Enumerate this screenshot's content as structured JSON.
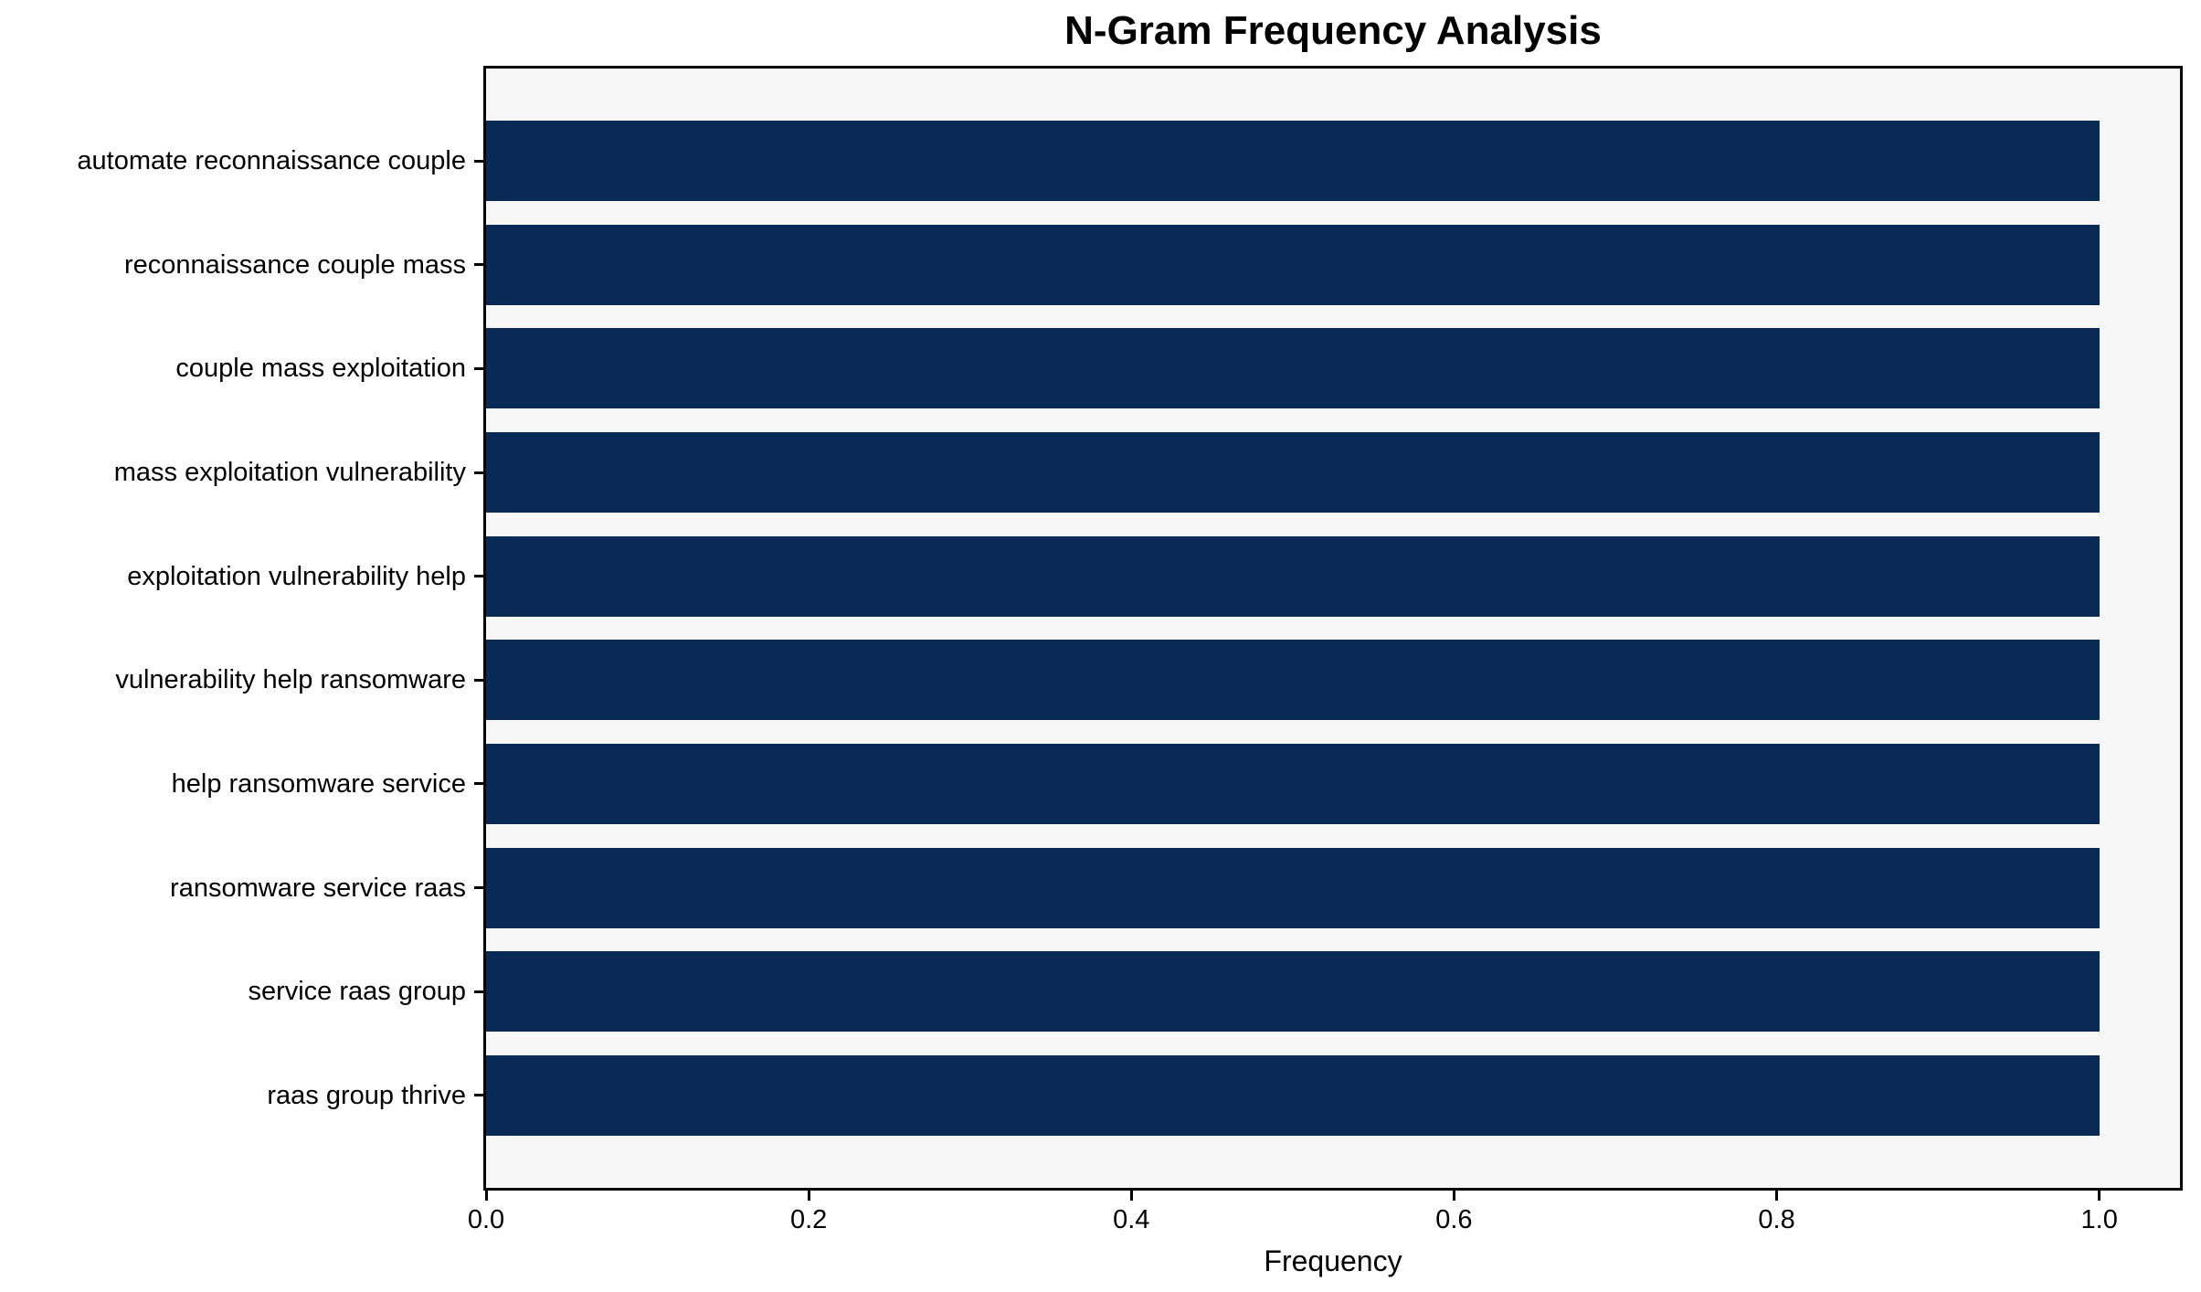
{
  "chart_data": {
    "type": "bar",
    "orientation": "horizontal",
    "title": "N-Gram Frequency Analysis",
    "xlabel": "Frequency",
    "ylabel": "",
    "categories": [
      "automate reconnaissance couple",
      "reconnaissance couple mass",
      "couple mass exploitation",
      "mass exploitation vulnerability",
      "exploitation vulnerability help",
      "vulnerability help ransomware",
      "help ransomware service",
      "ransomware service raas",
      "service raas group",
      "raas group thrive"
    ],
    "values": [
      1.0,
      1.0,
      1.0,
      1.0,
      1.0,
      1.0,
      1.0,
      1.0,
      1.0,
      1.0
    ],
    "xticks": [
      "0.0",
      "0.2",
      "0.4",
      "0.6",
      "0.8",
      "1.0"
    ],
    "xlim": [
      0,
      1.05
    ],
    "grid": false,
    "legend": null,
    "colors": {
      "bar": "#082a54",
      "plot_background": "#f7f7f7",
      "figure_background": "#ffffff",
      "spine": "#000000",
      "text": "#000000"
    }
  }
}
